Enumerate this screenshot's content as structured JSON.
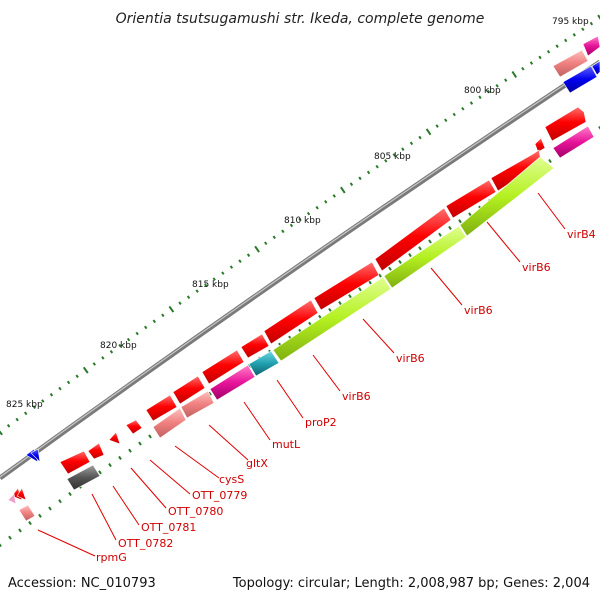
{
  "title": "Orientia tsutsugamushi str. Ikeda, complete genome",
  "footer": {
    "accession": "Accession: NC_010793",
    "summary": "Topology: circular; Length: 2,008,987 bp; Genes: 2,004"
  },
  "colors": {
    "backbone": "#808080",
    "gene_forward": "#ff0000",
    "gene_pseudo": "#f08080",
    "gene_blue": "#0000ee",
    "gene_magenta": "#e8139a",
    "gene_lime": "#b4f020",
    "gene_teal": "#20a0b0",
    "gene_gray": "#555555",
    "tick": "#2a7a2a",
    "label": "#d00000"
  },
  "scale_labels": [
    "795 kbp",
    "800 kbp",
    "805 kbp",
    "810 kbp",
    "815 kbp",
    "820 kbp",
    "825 kbp"
  ],
  "gene_labels": [
    "virB4",
    "virB6",
    "virB6",
    "virB6",
    "virB6",
    "proP2",
    "mutL",
    "gltX",
    "cysS",
    "OTT_0779",
    "OTT_0780",
    "OTT_0781",
    "OTT_0782",
    "rpmG"
  ]
}
